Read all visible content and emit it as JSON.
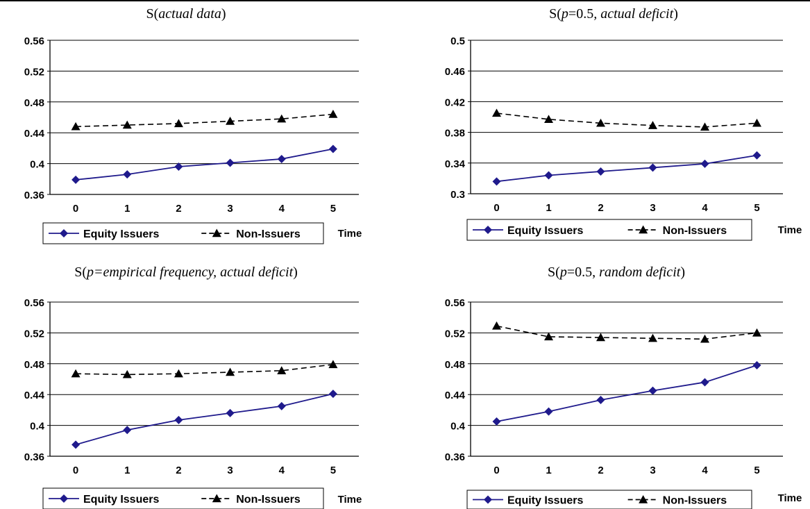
{
  "chart_data": [
    {
      "type": "line",
      "title_parts": [
        {
          "text": "S(",
          "italic": false
        },
        {
          "text": "actual data",
          "italic": true
        },
        {
          "text": ")",
          "italic": false
        }
      ],
      "categories": [
        "0",
        "1",
        "2",
        "3",
        "4",
        "5"
      ],
      "xlabel": "Time",
      "ylim": [
        0.36,
        0.56
      ],
      "yticks": [
        "0.36",
        "0.4",
        "0.44",
        "0.48",
        "0.52",
        "0.56"
      ],
      "grid": true,
      "legend": "bottom",
      "series": [
        {
          "name": "Equity Issuers",
          "color": "#1f1a8c",
          "marker": "diamond",
          "dash": "solid",
          "values": [
            0.379,
            0.386,
            0.396,
            0.401,
            0.406,
            0.419
          ]
        },
        {
          "name": "Non-Issuers",
          "color": "#000000",
          "marker": "triangle",
          "dash": "dashed",
          "values": [
            0.448,
            0.45,
            0.452,
            0.455,
            0.458,
            0.464
          ]
        }
      ]
    },
    {
      "type": "line",
      "title_parts": [
        {
          "text": "S(",
          "italic": false
        },
        {
          "text": "p",
          "italic": true
        },
        {
          "text": "=0.5",
          "italic": false
        },
        {
          "text": ", actual deficit",
          "italic": true
        },
        {
          "text": ")",
          "italic": false
        }
      ],
      "categories": [
        "0",
        "1",
        "2",
        "3",
        "4",
        "5"
      ],
      "xlabel": "Time",
      "ylim": [
        0.3,
        0.5
      ],
      "yticks": [
        "0.3",
        "0.34",
        "0.38",
        "0.42",
        "0.46",
        "0.5"
      ],
      "grid": true,
      "legend": "bottom",
      "series": [
        {
          "name": "Equity Issuers",
          "color": "#1f1a8c",
          "marker": "diamond",
          "dash": "solid",
          "values": [
            0.316,
            0.324,
            0.329,
            0.334,
            0.339,
            0.35
          ]
        },
        {
          "name": "Non-Issuers",
          "color": "#000000",
          "marker": "triangle",
          "dash": "dashed",
          "values": [
            0.405,
            0.397,
            0.392,
            0.389,
            0.387,
            0.392
          ]
        }
      ]
    },
    {
      "type": "line",
      "title_parts": [
        {
          "text": "S(",
          "italic": false
        },
        {
          "text": "p=empirical frequency, actual deficit",
          "italic": true
        },
        {
          "text": ")",
          "italic": false
        }
      ],
      "categories": [
        "0",
        "1",
        "2",
        "3",
        "4",
        "5"
      ],
      "xlabel": "Time",
      "ylim": [
        0.36,
        0.56
      ],
      "yticks": [
        "0.36",
        "0.4",
        "0.44",
        "0.48",
        "0.52",
        "0.56"
      ],
      "grid": true,
      "legend": "bottom",
      "series": [
        {
          "name": "Equity Issuers",
          "color": "#1f1a8c",
          "marker": "diamond",
          "dash": "solid",
          "values": [
            0.375,
            0.394,
            0.407,
            0.416,
            0.425,
            0.441
          ]
        },
        {
          "name": "Non-Issuers",
          "color": "#000000",
          "marker": "triangle",
          "dash": "dashed",
          "values": [
            0.467,
            0.466,
            0.467,
            0.469,
            0.471,
            0.479
          ]
        }
      ]
    },
    {
      "type": "line",
      "title_parts": [
        {
          "text": "S(",
          "italic": false
        },
        {
          "text": "p",
          "italic": true
        },
        {
          "text": "=0.5, ",
          "italic": false
        },
        {
          "text": "random deficit",
          "italic": true
        },
        {
          "text": ")",
          "italic": false
        }
      ],
      "categories": [
        "0",
        "1",
        "2",
        "3",
        "4",
        "5"
      ],
      "xlabel": "Time",
      "ylim": [
        0.36,
        0.56
      ],
      "yticks": [
        "0.36",
        "0.4",
        "0.44",
        "0.48",
        "0.52",
        "0.56"
      ],
      "grid": true,
      "legend": "bottom",
      "series": [
        {
          "name": "Equity Issuers",
          "color": "#1f1a8c",
          "marker": "diamond",
          "dash": "solid",
          "values": [
            0.405,
            0.418,
            0.433,
            0.445,
            0.456,
            0.478
          ]
        },
        {
          "name": "Non-Issuers",
          "color": "#000000",
          "marker": "triangle",
          "dash": "dashed",
          "values": [
            0.529,
            0.515,
            0.514,
            0.513,
            0.512,
            0.52
          ]
        }
      ]
    }
  ]
}
